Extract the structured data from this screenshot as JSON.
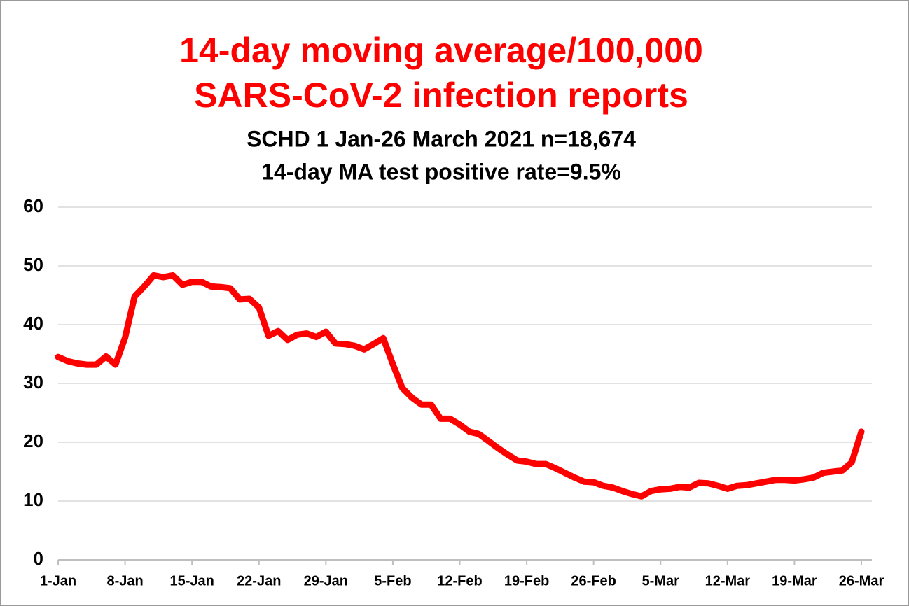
{
  "chart_data": {
    "type": "line",
    "title": [
      "14-day moving average/100,000",
      "SARS-CoV-2 infection reports"
    ],
    "subtitle": [
      "SCHD 1 Jan-26 March 2021 n=18,674",
      "14-day MA test positive rate=9.5%"
    ],
    "categories": [
      "1-Jan",
      null,
      null,
      null,
      null,
      null,
      null,
      "8-Jan",
      null,
      null,
      null,
      null,
      null,
      null,
      "15-Jan",
      null,
      null,
      null,
      null,
      null,
      null,
      "22-Jan",
      null,
      null,
      null,
      null,
      null,
      null,
      "29-Jan",
      null,
      null,
      null,
      null,
      null,
      null,
      "5-Feb",
      null,
      null,
      null,
      null,
      null,
      null,
      "12-Feb",
      null,
      null,
      null,
      null,
      null,
      null,
      "19-Feb",
      null,
      null,
      null,
      null,
      null,
      null,
      "26-Feb",
      null,
      null,
      null,
      null,
      null,
      null,
      "5-Mar",
      null,
      null,
      null,
      null,
      null,
      null,
      "12-Mar",
      null,
      null,
      null,
      null,
      null,
      null,
      "19-Mar",
      null,
      null,
      null,
      null,
      null,
      null,
      "26-Mar"
    ],
    "values": [
      34.5,
      33.8,
      33.4,
      33.2,
      33.2,
      34.6,
      33.2,
      37.8,
      44.8,
      46.5,
      48.4,
      48.1,
      48.4,
      46.8,
      47.3,
      47.3,
      46.5,
      46.4,
      46.2,
      44.3,
      44.4,
      42.9,
      38.1,
      38.9,
      37.4,
      38.3,
      38.5,
      37.9,
      38.8,
      36.8,
      36.7,
      36.4,
      35.8,
      36.7,
      37.7,
      33.3,
      29.2,
      27.6,
      26.4,
      26.4,
      24.0,
      24.0,
      23.0,
      21.8,
      21.4,
      20.2,
      19.0,
      17.9,
      16.9,
      16.7,
      16.3,
      16.3,
      15.6,
      14.8,
      14.0,
      13.3,
      13.2,
      12.6,
      12.3,
      11.7,
      11.2,
      10.8,
      11.7,
      12.0,
      12.1,
      12.4,
      12.3,
      13.1,
      13.0,
      12.6,
      12.1,
      12.6,
      12.7,
      13.0,
      13.3,
      13.6,
      13.6,
      13.5,
      13.7,
      14.0,
      14.8,
      15.0,
      15.2,
      16.6,
      21.8
    ],
    "color": "#ff0000",
    "ylim": [
      0,
      60
    ],
    "yticks": [
      0,
      10,
      20,
      30,
      40,
      50,
      60
    ],
    "grid": true
  }
}
